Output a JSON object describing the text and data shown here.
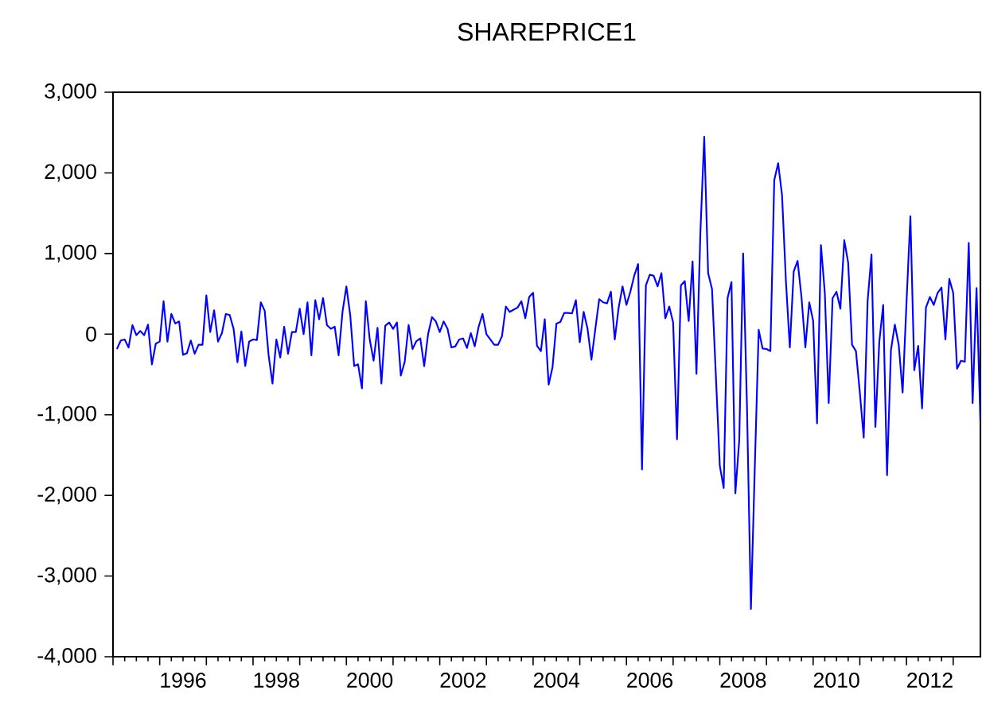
{
  "chart_data": {
    "type": "line",
    "title": "SHAREPRICE1",
    "x": [
      "1995-02",
      "1995-03",
      "1995-04",
      "1995-05",
      "1995-06",
      "1995-07",
      "1995-08",
      "1995-09",
      "1995-10",
      "1995-11",
      "1995-12",
      "1996-01",
      "1996-02",
      "1996-03",
      "1996-04",
      "1996-05",
      "1996-06",
      "1996-07",
      "1996-08",
      "1996-09",
      "1996-10",
      "1996-11",
      "1996-12",
      "1997-01",
      "1997-02",
      "1997-03",
      "1997-04",
      "1997-05",
      "1997-06",
      "1997-07",
      "1997-08",
      "1997-09",
      "1997-10",
      "1997-11",
      "1997-12",
      "1998-01",
      "1998-02",
      "1998-03",
      "1998-04",
      "1998-05",
      "1998-06",
      "1998-07",
      "1998-08",
      "1998-09",
      "1998-10",
      "1998-11",
      "1998-12",
      "1999-01",
      "1999-02",
      "1999-03",
      "1999-04",
      "1999-05",
      "1999-06",
      "1999-07",
      "1999-08",
      "1999-09",
      "1999-10",
      "1999-11",
      "1999-12",
      "2000-01",
      "2000-02",
      "2000-03",
      "2000-04",
      "2000-05",
      "2000-06",
      "2000-07",
      "2000-08",
      "2000-09",
      "2000-10",
      "2000-11",
      "2000-12",
      "2001-01",
      "2001-02",
      "2001-03",
      "2001-04",
      "2001-05",
      "2001-06",
      "2001-07",
      "2001-08",
      "2001-09",
      "2001-10",
      "2001-11",
      "2001-12",
      "2002-01",
      "2002-02",
      "2002-03",
      "2002-04",
      "2002-05",
      "2002-06",
      "2002-07",
      "2002-08",
      "2002-09",
      "2002-10",
      "2002-11",
      "2002-12",
      "2003-01",
      "2003-02",
      "2003-03",
      "2003-04",
      "2003-05",
      "2003-06",
      "2003-07",
      "2003-08",
      "2003-09",
      "2003-10",
      "2003-11",
      "2003-12",
      "2004-01",
      "2004-02",
      "2004-03",
      "2004-04",
      "2004-05",
      "2004-06",
      "2004-07",
      "2004-08",
      "2004-09",
      "2004-10",
      "2004-11",
      "2004-12",
      "2005-01",
      "2005-02",
      "2005-03",
      "2005-04",
      "2005-05",
      "2005-06",
      "2005-07",
      "2005-08",
      "2005-09",
      "2005-10",
      "2005-11",
      "2005-12",
      "2006-01",
      "2006-02",
      "2006-03",
      "2006-04",
      "2006-05",
      "2006-06",
      "2006-07",
      "2006-08",
      "2006-09",
      "2006-10",
      "2006-11",
      "2006-12",
      "2007-01",
      "2007-02",
      "2007-03",
      "2007-04",
      "2007-05",
      "2007-06",
      "2007-07",
      "2007-08",
      "2007-09",
      "2007-10",
      "2007-11",
      "2007-12",
      "2008-01",
      "2008-02",
      "2008-03",
      "2008-04",
      "2008-05",
      "2008-06",
      "2008-07",
      "2008-08",
      "2008-09",
      "2008-10",
      "2008-11",
      "2008-12",
      "2009-01",
      "2009-02",
      "2009-03",
      "2009-04",
      "2009-05",
      "2009-06",
      "2009-07",
      "2009-08",
      "2009-09",
      "2009-10",
      "2009-11",
      "2009-12",
      "2010-01",
      "2010-02",
      "2010-03",
      "2010-04",
      "2010-05",
      "2010-06",
      "2010-07",
      "2010-08",
      "2010-09",
      "2010-10",
      "2010-11",
      "2010-12",
      "2011-01",
      "2011-02",
      "2011-03",
      "2011-04",
      "2011-05",
      "2011-06",
      "2011-07",
      "2011-08",
      "2011-09",
      "2011-10",
      "2011-11",
      "2011-12",
      "2012-01",
      "2012-02",
      "2012-03",
      "2012-04",
      "2012-05",
      "2012-06",
      "2012-07",
      "2012-08",
      "2012-09",
      "2012-10",
      "2012-11",
      "2012-12",
      "2013-01",
      "2013-02",
      "2013-03",
      "2013-04",
      "2013-05",
      "2013-06",
      "2013-07",
      "2013-08"
    ],
    "series": [
      {
        "color": "#0000ff",
        "values": [
          -184,
          -79,
          -66,
          -165,
          112,
          -13,
          39,
          -13,
          118,
          -375,
          -118,
          -92,
          408,
          -92,
          250,
          132,
          158,
          -257,
          -237,
          -79,
          -243,
          -132,
          -132,
          480,
          26,
          296,
          -92,
          13,
          250,
          237,
          66,
          -349,
          33,
          -395,
          -92,
          -66,
          -72,
          395,
          290,
          -263,
          -612,
          -66,
          -290,
          92,
          -243,
          26,
          26,
          316,
          0,
          395,
          -263,
          421,
          184,
          447,
          112,
          66,
          92,
          -263,
          276,
          592,
          230,
          -395,
          -375,
          -671,
          408,
          -66,
          -329,
          79,
          -612,
          105,
          145,
          66,
          145,
          -513,
          -342,
          112,
          -184,
          -86,
          -53,
          -395,
          0,
          211,
          158,
          26,
          158,
          66,
          -165,
          -151,
          -66,
          -53,
          -171,
          13,
          -151,
          92,
          250,
          0,
          -66,
          -132,
          -132,
          -26,
          342,
          276,
          303,
          329,
          408,
          197,
          461,
          513,
          -145,
          -211,
          184,
          -625,
          -408,
          132,
          151,
          263,
          263,
          257,
          421,
          -99,
          276,
          66,
          -316,
          66,
          434,
          395,
          382,
          526,
          -66,
          329,
          592,
          362,
          526,
          724,
          869,
          -1678,
          605,
          737,
          724,
          592,
          757,
          197,
          342,
          145,
          -1303,
          605,
          658,
          164,
          901,
          -493,
          1250,
          2448,
          757,
          559,
          -526,
          -1632,
          -1908,
          447,
          645,
          -1974,
          -1316,
          1000,
          -921,
          -3408,
          -1645,
          53,
          -178,
          -184,
          -210,
          1908,
          2119,
          1724,
          658,
          -165,
          776,
          908,
          461,
          -165,
          395,
          164,
          -1105,
          1105,
          513,
          -855,
          447,
          526,
          316,
          1165,
          888,
          -132,
          -210,
          -724,
          -1283,
          408,
          987,
          -1151,
          -99,
          362,
          -1750,
          -197,
          118,
          -132,
          -724,
          395,
          1461,
          -447,
          -145,
          -921,
          329,
          461,
          362,
          513,
          579,
          -66,
          684,
          513,
          -428,
          -329,
          -342,
          1132,
          -855,
          572,
          -1086
        ]
      }
    ],
    "xlim": [
      "1995-01",
      "2013-08"
    ],
    "xticks": [
      {
        "value": "1995-01",
        "label": null
      },
      {
        "value": "1996-01",
        "label": null
      },
      {
        "value": "1997-01",
        "label": null
      },
      {
        "value": "1998-01",
        "label": null
      },
      {
        "value": "1999-01",
        "label": null
      },
      {
        "value": "2000-01",
        "label": null
      },
      {
        "value": "2001-01",
        "label": null
      },
      {
        "value": "2002-01",
        "label": null
      },
      {
        "value": "2003-01",
        "label": null
      },
      {
        "value": "2004-01",
        "label": null
      },
      {
        "value": "2005-01",
        "label": null
      },
      {
        "value": "2006-01",
        "label": null
      },
      {
        "value": "2007-01",
        "label": null
      },
      {
        "value": "2008-01",
        "label": null
      },
      {
        "value": "2009-01",
        "label": null
      },
      {
        "value": "2010-01",
        "label": null
      },
      {
        "value": "2011-01",
        "label": null
      },
      {
        "value": "2012-01",
        "label": null
      },
      {
        "value": "2013-01",
        "label": null
      },
      {
        "value": "1996-07",
        "label": "1996"
      },
      {
        "value": "1998-07",
        "label": "1998"
      },
      {
        "value": "2000-07",
        "label": "2000"
      },
      {
        "value": "2002-07",
        "label": "2002"
      },
      {
        "value": "2004-07",
        "label": "2004"
      },
      {
        "value": "2006-07",
        "label": "2006"
      },
      {
        "value": "2008-07",
        "label": "2008"
      },
      {
        "value": "2010-07",
        "label": "2010"
      },
      {
        "value": "2012-07",
        "label": "2012"
      }
    ],
    "ylim": [
      -4000,
      3000
    ],
    "yticks": [
      {
        "value": -4000,
        "label": "-4,000"
      },
      {
        "value": -3000,
        "label": "-3,000"
      },
      {
        "value": -2000,
        "label": "-2,000"
      },
      {
        "value": -1000,
        "label": "-1,000"
      },
      {
        "value": 0,
        "label": "0"
      },
      {
        "value": 1000,
        "label": "1,000"
      },
      {
        "value": 2000,
        "label": "2,000"
      },
      {
        "value": 3000,
        "label": "3,000"
      }
    ],
    "grid": false,
    "marker": "none",
    "line_style": "solid"
  }
}
